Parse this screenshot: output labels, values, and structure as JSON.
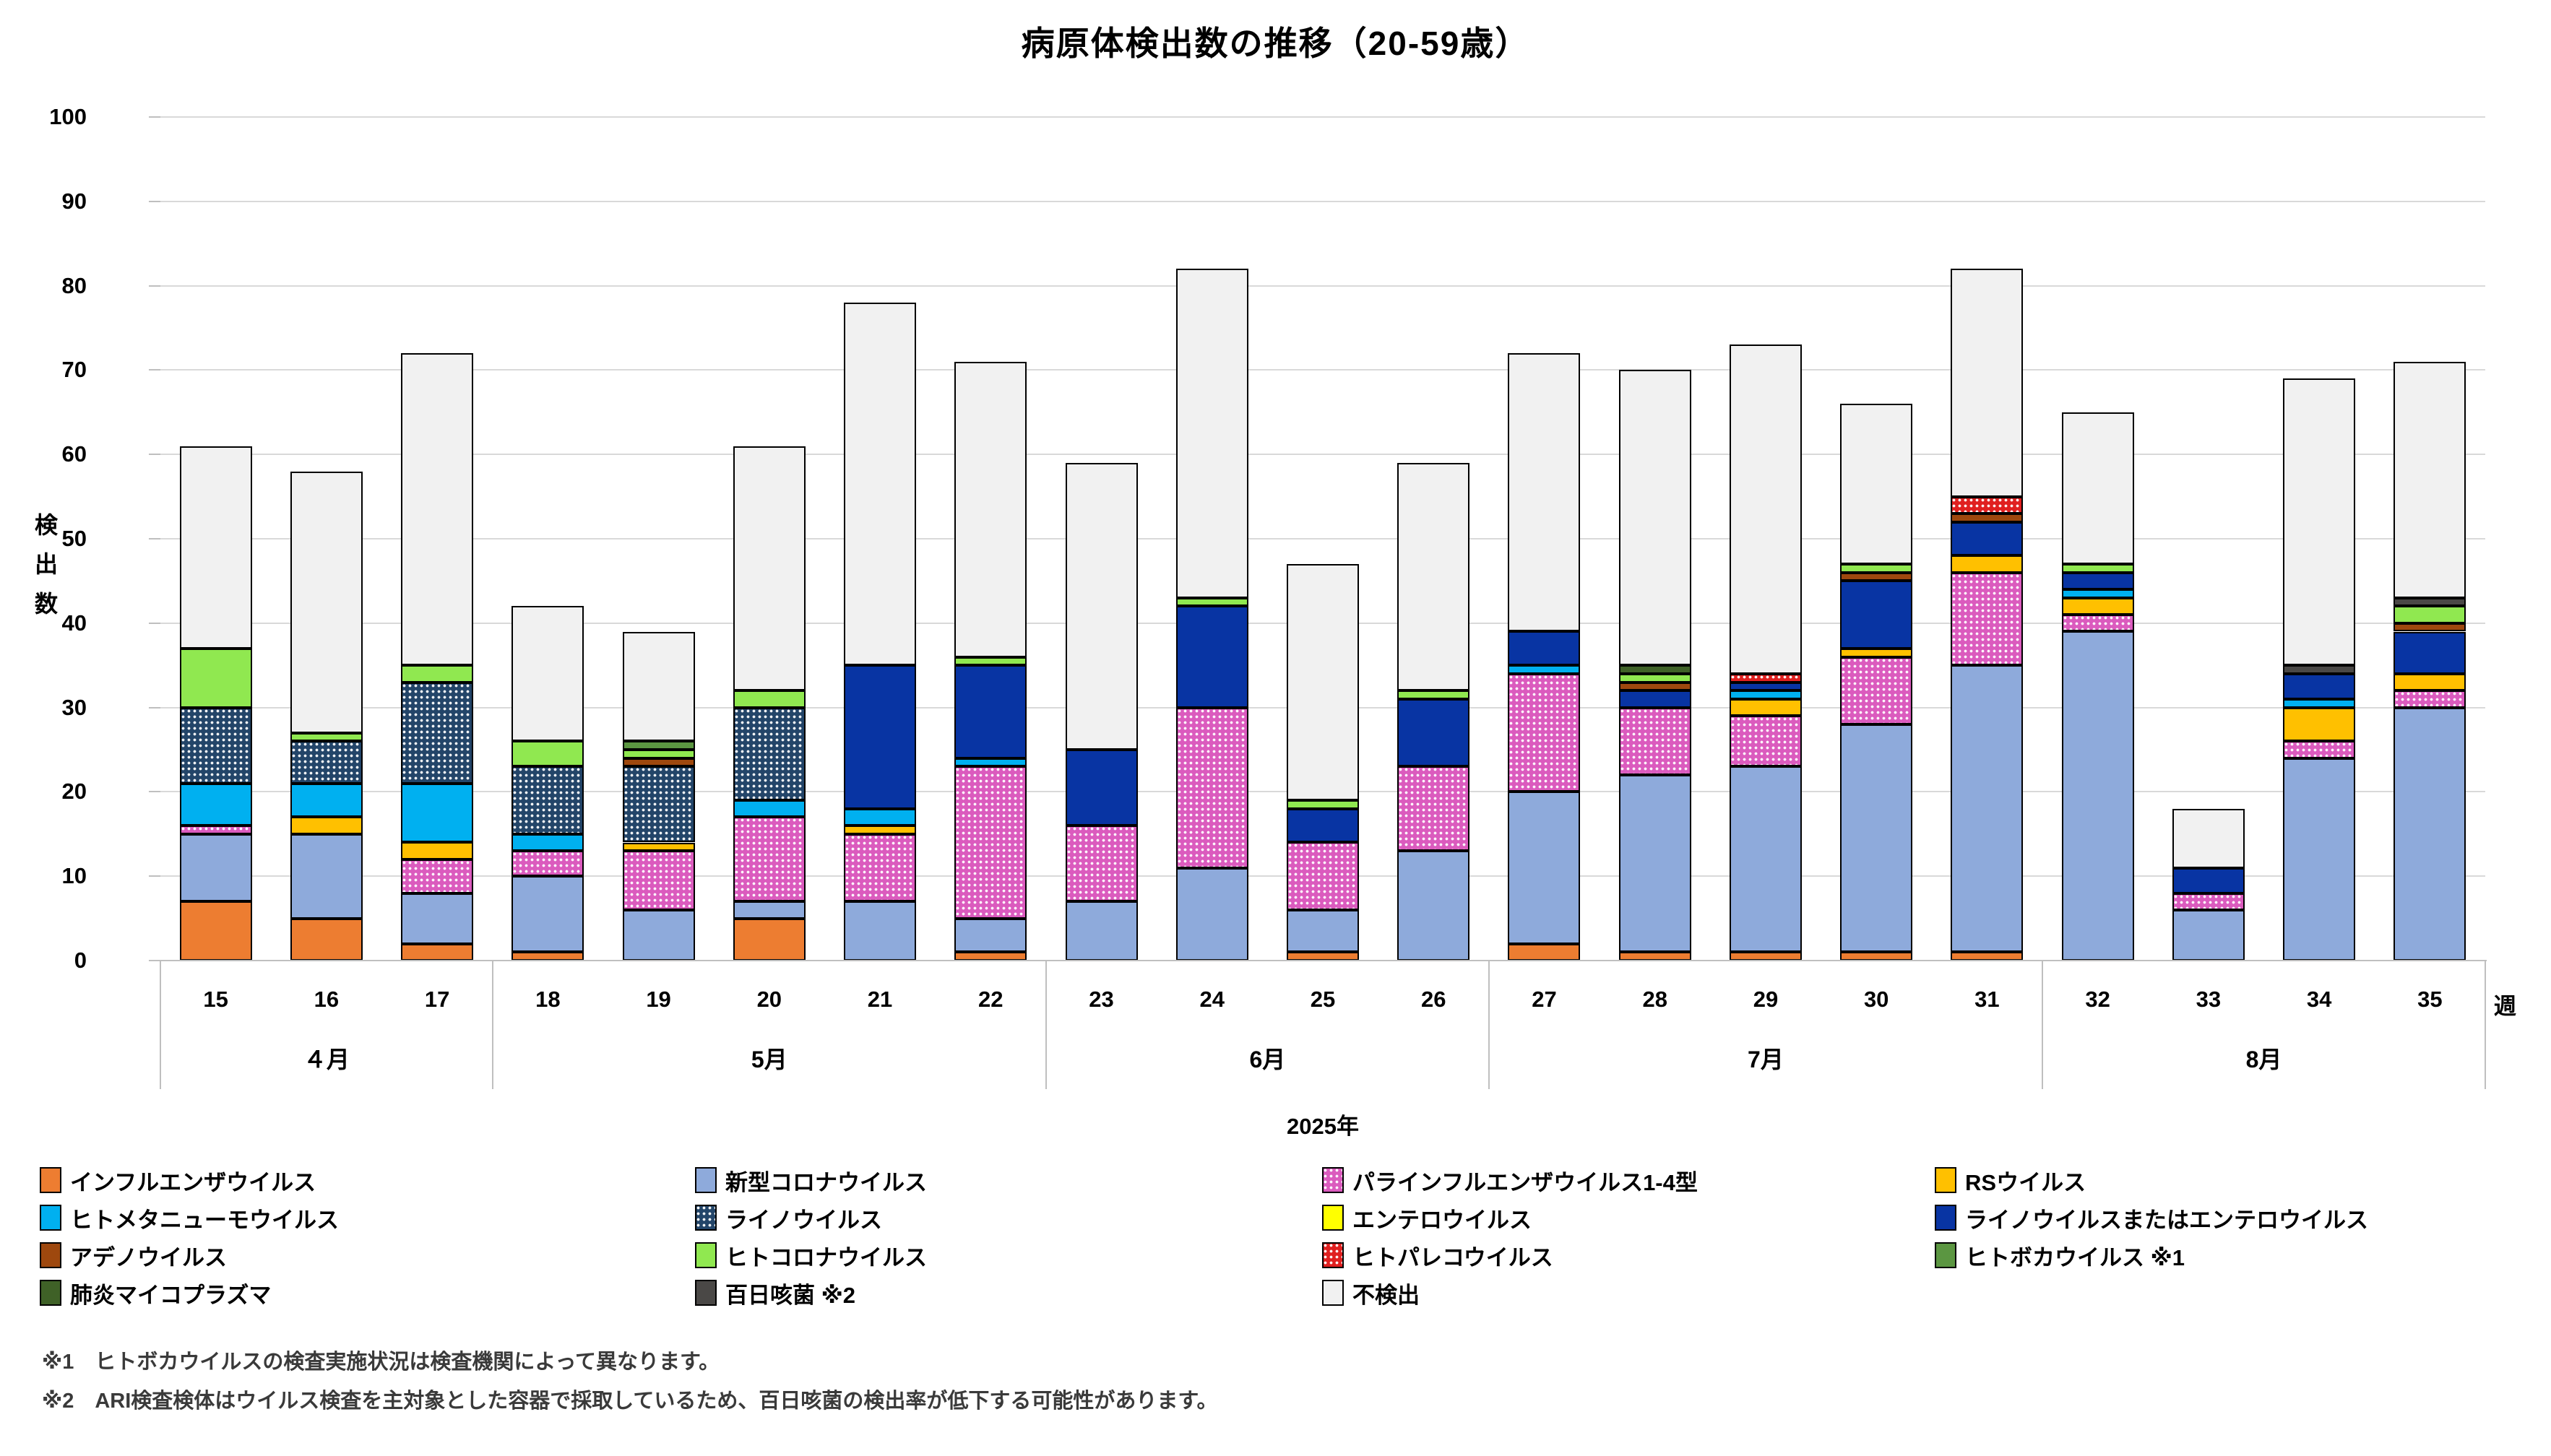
{
  "title": "病原体検出数の推移（20-59歳）",
  "y_axis": {
    "title": "検出数",
    "title_stacked": "検\n出\n数",
    "min": 0,
    "max": 100,
    "step": 10
  },
  "x_axis": {
    "unit_label": "週",
    "year_label": "2025年",
    "months": [
      {
        "label": "４月",
        "weeks": [
          "15",
          "16",
          "17"
        ]
      },
      {
        "label": "5月",
        "weeks": [
          "18",
          "19",
          "20",
          "21",
          "22"
        ]
      },
      {
        "label": "6月",
        "weeks": [
          "23",
          "24",
          "25",
          "26"
        ]
      },
      {
        "label": "7月",
        "weeks": [
          "27",
          "28",
          "29",
          "30",
          "31"
        ]
      },
      {
        "label": "8月",
        "weeks": [
          "32",
          "33",
          "34",
          "35"
        ]
      }
    ]
  },
  "footnotes": [
    "※1　ヒトボカウイルスの検査実施状況は検査機関によって異なります。",
    "※2　ARI検査検体はウイルス検査を主対象とした容器で採取しているため、百日咳菌の検出率が低下する可能性があります。"
  ],
  "palette": {
    "influenza": {
      "color": "#ED7D31",
      "pattern": false
    },
    "covid": {
      "color": "#8EAADB",
      "pattern": false
    },
    "parainfluenza": {
      "color": "#DB5BBE",
      "pattern": true
    },
    "rs": {
      "color": "#FFC000",
      "pattern": false
    },
    "hmpv": {
      "color": "#00B0F0",
      "pattern": false
    },
    "rhinovirus": {
      "color": "#234569",
      "pattern": true
    },
    "enterovirus": {
      "color": "#FFFF00",
      "pattern": false
    },
    "rhino_entero": {
      "color": "#0834A3",
      "pattern": false
    },
    "adenovirus": {
      "color": "#9E480E",
      "pattern": false
    },
    "hcov": {
      "color": "#90E850",
      "pattern": false
    },
    "parechovirus": {
      "color": "#E02020",
      "pattern": true
    },
    "bocavirus": {
      "color": "#5B9641",
      "pattern": false
    },
    "mycoplasma": {
      "color": "#3F6127",
      "pattern": false
    },
    "pertussis": {
      "color": "#4A4846",
      "pattern": false
    },
    "not_detected": {
      "color": "#F1F1F1",
      "pattern": false
    }
  },
  "legend_order": [
    "influenza",
    "covid",
    "parainfluenza",
    "rs",
    "hmpv",
    "rhinovirus",
    "enterovirus",
    "rhino_entero",
    "adenovirus",
    "hcov",
    "parechovirus",
    "bocavirus",
    "mycoplasma",
    "pertussis",
    "not_detected"
  ],
  "chart_data": {
    "type": "bar",
    "stacked": true,
    "grid": true,
    "ylim": [
      0,
      100
    ],
    "title": "病原体検出数の推移（20-59歳）",
    "ylabel": "検出数",
    "xlabel": "週",
    "categories": [
      "15",
      "16",
      "17",
      "18",
      "19",
      "20",
      "21",
      "22",
      "23",
      "24",
      "25",
      "26",
      "27",
      "28",
      "29",
      "30",
      "31",
      "32",
      "33",
      "34",
      "35"
    ],
    "totals": [
      61,
      58,
      72,
      42,
      39,
      61,
      78,
      71,
      59,
      82,
      47,
      59,
      72,
      70,
      73,
      66,
      82,
      65,
      18,
      69,
      71
    ],
    "series": [
      {
        "key": "influenza",
        "name": "インフルエンザウイルス",
        "values": [
          7,
          5,
          2,
          1,
          0,
          5,
          0,
          1,
          0,
          0,
          1,
          0,
          2,
          1,
          1,
          1,
          1,
          0,
          0,
          0,
          0
        ]
      },
      {
        "key": "covid",
        "name": "新型コロナウイルス",
        "values": [
          8,
          10,
          6,
          9,
          6,
          2,
          7,
          4,
          7,
          11,
          5,
          13,
          18,
          21,
          22,
          27,
          34,
          39,
          6,
          24,
          30
        ]
      },
      {
        "key": "parainfluenza",
        "name": "パラインフルエンザウイルス1-4型",
        "values": [
          1,
          0,
          4,
          3,
          7,
          10,
          8,
          18,
          9,
          19,
          8,
          10,
          14,
          8,
          6,
          8,
          11,
          2,
          2,
          2,
          2
        ]
      },
      {
        "key": "rs",
        "name": "RSウイルス",
        "values": [
          0,
          2,
          2,
          0,
          1,
          0,
          1,
          0,
          0,
          0,
          0,
          0,
          0,
          0,
          2,
          1,
          2,
          2,
          0,
          4,
          2
        ]
      },
      {
        "key": "hmpv",
        "name": "ヒトメタニューモウイルス",
        "values": [
          5,
          4,
          7,
          2,
          0,
          2,
          2,
          1,
          0,
          0,
          0,
          0,
          1,
          0,
          1,
          0,
          0,
          1,
          0,
          1,
          0
        ]
      },
      {
        "key": "rhinovirus",
        "name": "ライノウイルス",
        "values": [
          9,
          5,
          12,
          8,
          9,
          11,
          0,
          0,
          0,
          0,
          0,
          0,
          0,
          0,
          0,
          0,
          0,
          0,
          0,
          0,
          0
        ]
      },
      {
        "key": "enterovirus",
        "name": "エンテロウイルス",
        "values": [
          0,
          0,
          0,
          0,
          0,
          0,
          0,
          0,
          0,
          0,
          0,
          0,
          0,
          0,
          0,
          0,
          0,
          0,
          0,
          0,
          0
        ]
      },
      {
        "key": "rhino_entero",
        "name": "ライノウイルスまたはエンテロウイルス",
        "values": [
          0,
          0,
          0,
          0,
          0,
          0,
          17,
          11,
          9,
          12,
          4,
          8,
          4,
          2,
          1,
          8,
          4,
          2,
          3,
          3,
          5
        ]
      },
      {
        "key": "adenovirus",
        "name": "アデノウイルス",
        "values": [
          0,
          0,
          0,
          0,
          1,
          0,
          0,
          0,
          0,
          0,
          0,
          0,
          0,
          1,
          0,
          1,
          1,
          0,
          0,
          0,
          1
        ]
      },
      {
        "key": "hcov",
        "name": "ヒトコロナウイルス",
        "values": [
          7,
          1,
          2,
          3,
          1,
          2,
          0,
          1,
          0,
          1,
          1,
          1,
          0,
          1,
          0,
          1,
          0,
          1,
          0,
          0,
          2
        ]
      },
      {
        "key": "parechovirus",
        "name": "ヒトパレコウイルス",
        "values": [
          0,
          0,
          0,
          0,
          0,
          0,
          0,
          0,
          0,
          0,
          0,
          0,
          0,
          0,
          1,
          0,
          2,
          0,
          0,
          0,
          0
        ]
      },
      {
        "key": "bocavirus",
        "name": "ヒトボカウイルス ※1",
        "values": [
          0,
          0,
          0,
          0,
          1,
          0,
          0,
          0,
          0,
          0,
          0,
          0,
          0,
          0,
          0,
          0,
          0,
          0,
          0,
          0,
          0
        ]
      },
      {
        "key": "mycoplasma",
        "name": "肺炎マイコプラズマ",
        "values": [
          0,
          0,
          0,
          0,
          0,
          0,
          0,
          0,
          0,
          0,
          0,
          0,
          0,
          1,
          0,
          0,
          0,
          0,
          0,
          0,
          0
        ]
      },
      {
        "key": "pertussis",
        "name": "百日咳菌 ※2",
        "values": [
          0,
          0,
          0,
          0,
          0,
          0,
          0,
          0,
          0,
          0,
          0,
          0,
          0,
          0,
          0,
          0,
          0,
          0,
          0,
          1,
          1
        ]
      },
      {
        "key": "not_detected",
        "name": "不検出",
        "values": [
          24,
          31,
          37,
          16,
          13,
          29,
          43,
          35,
          34,
          39,
          28,
          27,
          33,
          35,
          39,
          19,
          27,
          18,
          7,
          34,
          28
        ]
      }
    ]
  }
}
